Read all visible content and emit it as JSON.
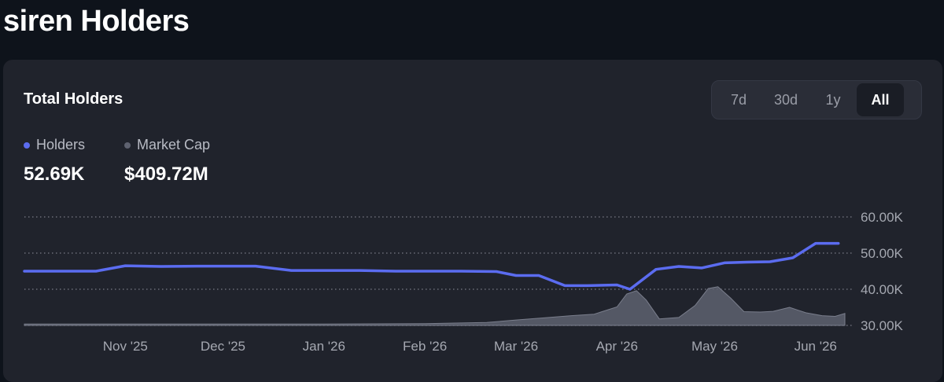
{
  "page": {
    "title": "siren Holders"
  },
  "card": {
    "title": "Total Holders",
    "range_tabs": [
      {
        "label": "7d",
        "active": false
      },
      {
        "label": "30d",
        "active": false
      },
      {
        "label": "1y",
        "active": false
      },
      {
        "label": "All",
        "active": true
      }
    ],
    "legend": {
      "holders": {
        "label": "Holders",
        "value": "52.69K",
        "color": "#5b6cf0"
      },
      "market_cap": {
        "label": "Market Cap",
        "value": "$409.72M",
        "color": "#5e6270"
      }
    }
  },
  "chart_data": {
    "type": "line",
    "x_start": "2025-10-01",
    "x_end": "2026-06-10",
    "x_ticks": [
      "Nov '25",
      "Dec '25",
      "Jan '26",
      "Feb '26",
      "Mar '26",
      "Apr '26",
      "May '26",
      "Jun '26"
    ],
    "y_ticks": [
      "60.00K",
      "50.00K",
      "40.00K",
      "30.00K"
    ],
    "ylim": [
      30000,
      60000
    ],
    "grid": true,
    "series": [
      {
        "name": "Holders",
        "kind": "line",
        "color": "#5b6cf0",
        "points": [
          [
            "2025-10-01",
            45000
          ],
          [
            "2025-10-12",
            45000
          ],
          [
            "2025-10-23",
            45000
          ],
          [
            "2025-11-01",
            46500
          ],
          [
            "2025-11-12",
            46300
          ],
          [
            "2025-11-23",
            46400
          ],
          [
            "2025-12-01",
            46400
          ],
          [
            "2025-12-11",
            46400
          ],
          [
            "2025-12-22",
            45200
          ],
          [
            "2026-01-01",
            45200
          ],
          [
            "2026-01-12",
            45200
          ],
          [
            "2026-01-23",
            45000
          ],
          [
            "2026-02-01",
            45000
          ],
          [
            "2026-02-12",
            45000
          ],
          [
            "2026-02-23",
            44900
          ],
          [
            "2026-03-01",
            43800
          ],
          [
            "2026-03-08",
            43800
          ],
          [
            "2026-03-16",
            41000
          ],
          [
            "2026-03-23",
            41000
          ],
          [
            "2026-04-01",
            41200
          ],
          [
            "2026-04-05",
            40000
          ],
          [
            "2026-04-13",
            45500
          ],
          [
            "2026-04-20",
            46300
          ],
          [
            "2026-04-27",
            45900
          ],
          [
            "2026-05-04",
            47300
          ],
          [
            "2026-05-11",
            47500
          ],
          [
            "2026-05-18",
            47600
          ],
          [
            "2026-05-25",
            48700
          ],
          [
            "2026-06-01",
            52700
          ],
          [
            "2026-06-08",
            52690
          ]
        ]
      },
      {
        "name": "Market Cap",
        "kind": "area",
        "color": "#5e6270",
        "points": [
          [
            "2025-10-01",
            30400
          ],
          [
            "2025-11-01",
            30400
          ],
          [
            "2025-12-01",
            30400
          ],
          [
            "2026-01-01",
            30400
          ],
          [
            "2026-02-01",
            30500
          ],
          [
            "2026-02-20",
            30800
          ],
          [
            "2026-03-01",
            31500
          ],
          [
            "2026-03-10",
            32100
          ],
          [
            "2026-03-18",
            32700
          ],
          [
            "2026-03-25",
            33100
          ],
          [
            "2026-04-01",
            35100
          ],
          [
            "2026-04-04",
            38700
          ],
          [
            "2026-04-07",
            39600
          ],
          [
            "2026-04-10",
            37000
          ],
          [
            "2026-04-14",
            31800
          ],
          [
            "2026-04-20",
            32200
          ],
          [
            "2026-04-25",
            35500
          ],
          [
            "2026-04-29",
            40200
          ],
          [
            "2026-05-02",
            40700
          ],
          [
            "2026-05-06",
            37500
          ],
          [
            "2026-05-10",
            33800
          ],
          [
            "2026-05-15",
            33700
          ],
          [
            "2026-05-19",
            33900
          ],
          [
            "2026-05-24",
            35000
          ],
          [
            "2026-05-29",
            33500
          ],
          [
            "2026-06-03",
            32700
          ],
          [
            "2026-06-07",
            32500
          ],
          [
            "2026-06-10",
            33300
          ]
        ]
      }
    ]
  }
}
